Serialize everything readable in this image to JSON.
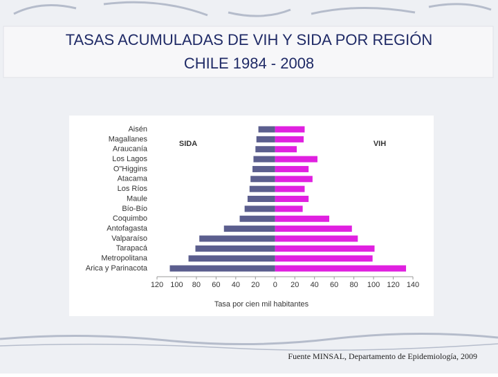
{
  "chart_data": {
    "type": "butterfly-bar",
    "title": [
      "TASAS ACUMULADAS DE VIH Y SIDA POR REGIÓN",
      "CHILE 1984 - 2008"
    ],
    "categories": [
      "Aisén",
      "Magallanes",
      "Araucanía",
      "Los Lagos",
      "O\"Higgins",
      "Atacama",
      "Los Ríos",
      "Maule",
      "Bío-Bío",
      "Coquimbo",
      "Antofagasta",
      "Valparaíso",
      "Tarapacá",
      "Metropolitana",
      "Arica y Parinacota"
    ],
    "series": [
      {
        "name": "SIDA",
        "color": "#5b5e8e",
        "values": [
          -17,
          -19,
          -20,
          -22,
          -23,
          -25,
          -26,
          -28,
          -31,
          -36,
          -52,
          -77,
          -81,
          -88,
          -107
        ]
      },
      {
        "name": "VIH",
        "color": "#e020e0",
        "values": [
          30,
          29,
          22,
          43,
          34,
          38,
          30,
          34,
          28,
          55,
          78,
          84,
          101,
          99,
          133
        ]
      }
    ],
    "xlim": [
      -120,
      140
    ],
    "xticks": [
      {
        "value": -120,
        "label": "120"
      },
      {
        "value": -100,
        "label": "100"
      },
      {
        "value": -80,
        "label": "80"
      },
      {
        "value": -60,
        "label": "60"
      },
      {
        "value": -40,
        "label": "40"
      },
      {
        "value": -20,
        "label": "20"
      },
      0,
      20,
      40,
      60,
      80,
      100,
      120,
      140
    ],
    "xlabel": "Tasa por cien mil habitantes"
  },
  "source": "Fuente MINSAL, Departamento de Epidemiología, 2009"
}
